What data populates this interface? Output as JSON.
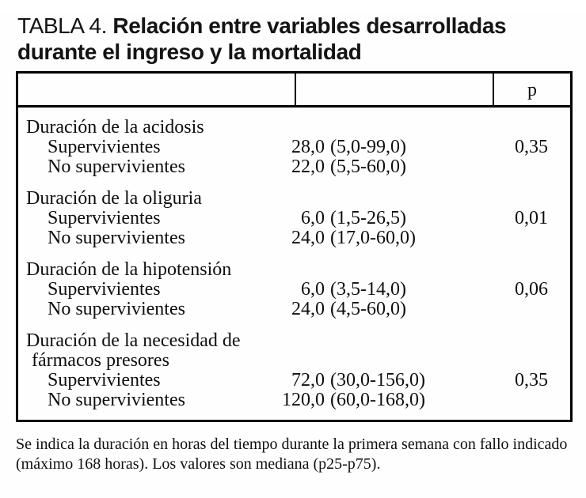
{
  "title": {
    "prefix": "TABLA 4.",
    "line1": "Relación entre variables desarrolladas",
    "line2": "durante el ingreso y la mortalidad"
  },
  "table": {
    "header": {
      "col1": "",
      "col2": "",
      "p_label": "p"
    },
    "groups": [
      {
        "label": "Duración de la acidosis",
        "rows": [
          {
            "name": "Supervivientes",
            "value_median": "28,0",
            "value_range": "(5,0-99,0)",
            "p": "0,35"
          },
          {
            "name": "No supervivientes",
            "value_median": "22,0",
            "value_range": "(5,5-60,0)",
            "p": ""
          }
        ]
      },
      {
        "label": "Duración de la oliguria",
        "rows": [
          {
            "name": "Supervivientes",
            "value_median": "6,0",
            "value_range": "(1,5-26,5)",
            "p": "0,01"
          },
          {
            "name": "No supervivientes",
            "value_median": "24,0",
            "value_range": "(17,0-60,0)",
            "p": ""
          }
        ]
      },
      {
        "label": "Duración de la hipotensión",
        "rows": [
          {
            "name": "Supervivientes",
            "value_median": "6,0",
            "value_range": "(3,5-14,0)",
            "p": "0,06"
          },
          {
            "name": "No supervivientes",
            "value_median": "24,0",
            "value_range": "(4,5-60,0)",
            "p": ""
          }
        ]
      },
      {
        "label": "Duración de la necesidad de",
        "label_line2": "fármacos presores",
        "rows": [
          {
            "name": "Supervivientes",
            "value_median": "72,0",
            "value_range": "(30,0-156,0)",
            "p": "0,35"
          },
          {
            "name": "No supervivientes",
            "value_median": "120,0",
            "value_range": "(60,0-168,0)",
            "p": ""
          }
        ]
      }
    ]
  },
  "footnote": {
    "line1": "Se indica la duración en horas del tiempo durante la primera semana con fallo indicado",
    "line2": "(máximo 168 horas). Los valores son mediana (p25-p75)."
  }
}
